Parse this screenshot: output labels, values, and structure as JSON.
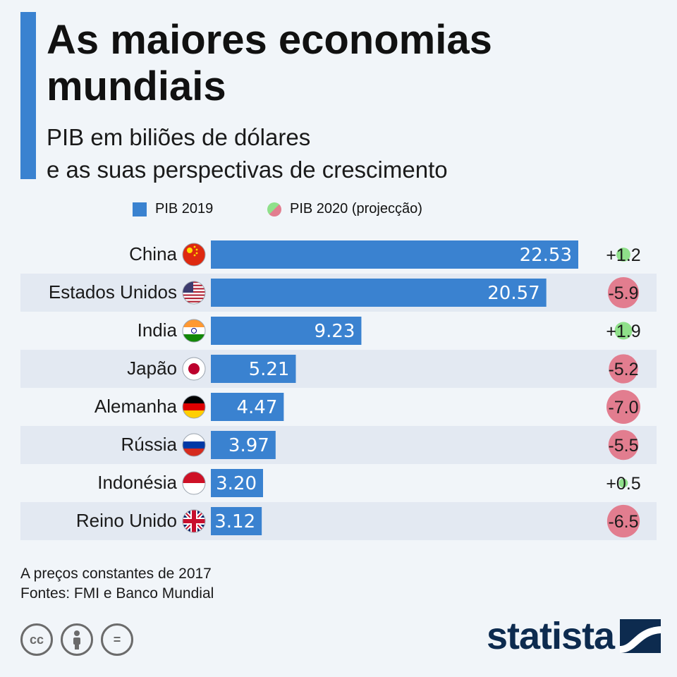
{
  "header": {
    "title": "As maiores economias mundiais",
    "subtitle_line1": "PIB em biliões de dólares",
    "subtitle_line2": "e as suas perspectivas de crescimento"
  },
  "legend": {
    "bar_label": "PIB 2019",
    "dot_label": "PIB 2020 (projecção)"
  },
  "colors": {
    "bar": "#3a82d0",
    "growth_positive": "#8fe08a",
    "growth_negative": "#e27d8f",
    "row_stripe": "#e3e9f2",
    "brand": "#0d2b4f"
  },
  "chart_data": {
    "type": "bar",
    "orientation": "horizontal",
    "categories": [
      "China",
      "Estados Unidos",
      "India",
      "Japão",
      "Alemanha",
      "Rússia",
      "Indonésia",
      "Reino Unido"
    ],
    "series": [
      {
        "name": "PIB 2019",
        "values": [
          22.53,
          20.57,
          9.23,
          5.21,
          4.47,
          3.97,
          3.2,
          3.12
        ],
        "labels": [
          "22.53",
          "20.57",
          "9.23",
          "5.21",
          "4.47",
          "3.97",
          "3.20",
          "3.12"
        ]
      },
      {
        "name": "PIB 2020 (projecção)",
        "values": [
          1.2,
          -5.9,
          1.9,
          -5.2,
          -7.0,
          -5.5,
          0.5,
          -6.5
        ],
        "labels": [
          "+1.2",
          "-5.9",
          "+1.9",
          "-5.2",
          "-7.0",
          "-5.5",
          "+0.5",
          "-6.5"
        ]
      }
    ],
    "flags": [
      "china-flag-icon",
      "usa-flag-icon",
      "india-flag-icon",
      "japan-flag-icon",
      "germany-flag-icon",
      "russia-flag-icon",
      "indonesia-flag-icon",
      "uk-flag-icon"
    ],
    "grid": false
  },
  "footer": {
    "note": "A preços constantes de 2017",
    "sources": "Fontes: FMI e Banco Mundial",
    "cc_label": "cc",
    "eq_label": "=",
    "brand": "statista"
  }
}
